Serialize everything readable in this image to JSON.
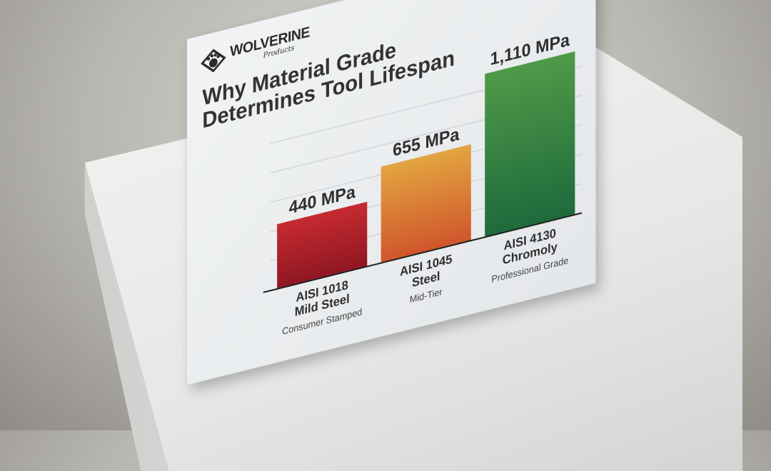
{
  "brand": {
    "name": "WOLVERINE",
    "sub": "Products"
  },
  "chart_data": {
    "type": "bar",
    "title": "Why Material Grade Determines Tool Lifespan",
    "categories": [
      "AISI 1018 Mild Steel",
      "AISI 1045 Steel",
      "AISI 4130 Chromoly"
    ],
    "category_lines": [
      [
        "AISI 1018",
        "Mild Steel"
      ],
      [
        "AISI 1045",
        "Steel"
      ],
      [
        "AISI 4130",
        "Chromoly"
      ]
    ],
    "subtitles": [
      "Consumer Stamped",
      "Mid-Tier",
      "Professional Grade"
    ],
    "values": [
      440,
      655,
      1110
    ],
    "value_labels": [
      "440 MPa",
      "655 MPa",
      "1,110 MPa"
    ],
    "unit": "MPa",
    "ylim": [
      0,
      1200
    ],
    "grid": true,
    "colors": [
      [
        "#c62a30",
        "#8f1722"
      ],
      [
        "#e3a540",
        "#d0552c"
      ],
      [
        "#4f9a48",
        "#1e6a3c"
      ]
    ]
  }
}
